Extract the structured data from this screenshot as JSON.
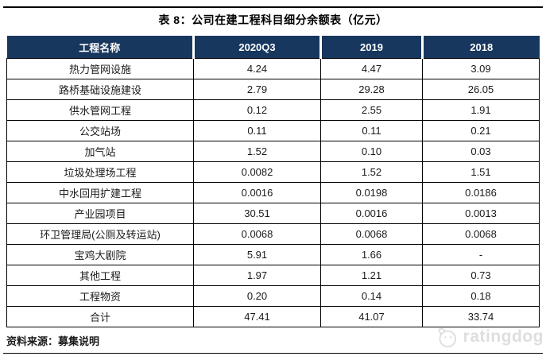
{
  "title": "表 8：公司在建工程科目细分余额表（亿元）",
  "table": {
    "columns": [
      "工程名称",
      "2020Q3",
      "2019",
      "2018"
    ],
    "rows": [
      {
        "name": "热力管网设施",
        "values": [
          "4.24",
          "4.47",
          "3.09"
        ]
      },
      {
        "name": "路桥基础设施建设",
        "values": [
          "2.79",
          "29.28",
          "26.05"
        ]
      },
      {
        "name": "供水管网工程",
        "values": [
          "0.12",
          "2.55",
          "1.91"
        ]
      },
      {
        "name": "公交站场",
        "values": [
          "0.11",
          "0.11",
          "0.21"
        ]
      },
      {
        "name": "加气站",
        "values": [
          "1.52",
          "0.10",
          "0.03"
        ]
      },
      {
        "name": "垃圾处理场工程",
        "values": [
          "0.0082",
          "1.52",
          "1.51"
        ]
      },
      {
        "name": "中水回用扩建工程",
        "values": [
          "0.0016",
          "0.0198",
          "0.0186"
        ]
      },
      {
        "name": "产业园项目",
        "values": [
          "30.51",
          "0.0016",
          "0.0013"
        ]
      },
      {
        "name": "环卫管理局(公厕及转运站)",
        "values": [
          "0.0068",
          "0.0068",
          "0.0068"
        ]
      },
      {
        "name": "宝鸡大剧院",
        "values": [
          "5.91",
          "1.66",
          "-"
        ]
      },
      {
        "name": "其他工程",
        "values": [
          "1.97",
          "1.21",
          "0.73"
        ]
      },
      {
        "name": "工程物资",
        "values": [
          "0.20",
          "0.14",
          "0.18"
        ]
      },
      {
        "name": "合计",
        "values": [
          "47.41",
          "41.07",
          "33.74"
        ]
      }
    ]
  },
  "footer": {
    "source_label": "资料来源：募集说明",
    "logo_text": "ratingdog",
    "logo_icon": "dog-face-icon"
  },
  "colors": {
    "header_bg": "#17375E",
    "header_text": "#FFFFFF",
    "grid": "#000000",
    "logo_gray": "#DEDEDE"
  }
}
